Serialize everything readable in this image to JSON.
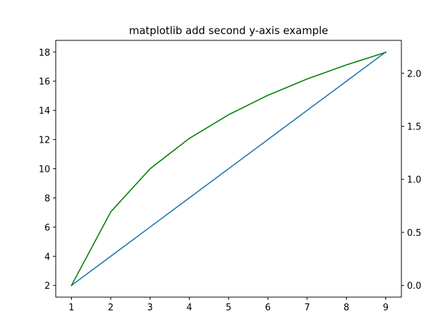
{
  "chart_data": {
    "type": "line",
    "title": "matplotlib add second y-axis example",
    "xlabel": "",
    "ylabel": "",
    "y2label": "",
    "x": [
      1,
      2,
      3,
      4,
      5,
      6,
      7,
      8,
      9
    ],
    "xlim": [
      0.6,
      9.4
    ],
    "ylim": [
      1.2,
      18.8
    ],
    "y2lim": [
      -0.11,
      2.31
    ],
    "x_ticks": [
      1,
      2,
      3,
      4,
      5,
      6,
      7,
      8,
      9
    ],
    "y_ticks": [
      2,
      4,
      6,
      8,
      10,
      12,
      14,
      16,
      18
    ],
    "y2_ticks": [
      "0.0",
      "0.5",
      "1.0",
      "1.5",
      "2.0"
    ],
    "grid": false,
    "series": [
      {
        "axis": "left",
        "color": "#1f77b4",
        "values": [
          2,
          4,
          6,
          8,
          10,
          12,
          14,
          16,
          18
        ]
      },
      {
        "axis": "right",
        "color": "#008000",
        "values": [
          0.0,
          0.693,
          1.099,
          1.386,
          1.609,
          1.792,
          1.946,
          2.079,
          2.197
        ]
      }
    ]
  }
}
